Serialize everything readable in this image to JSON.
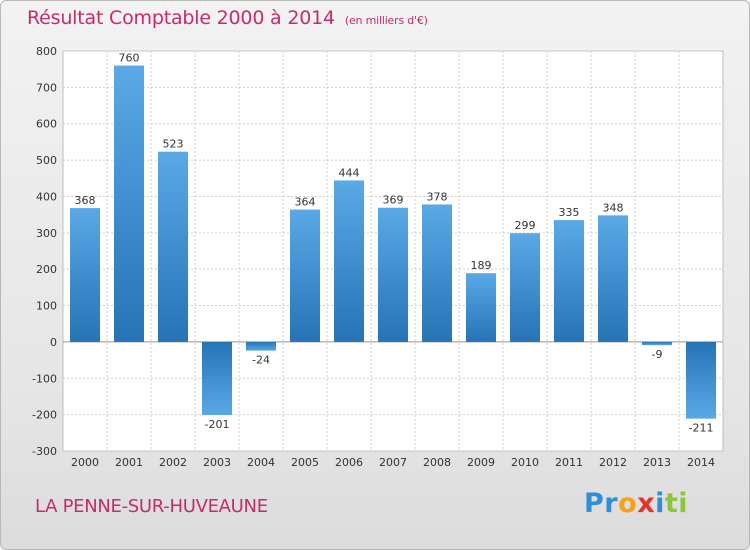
{
  "header": {
    "title": "Résultat Comptable 2000 à 2014",
    "unit": "(en milliers d'€)"
  },
  "footer": {
    "commune": "LA PENNE-SUR-HUVEAUNE",
    "brand_letters": [
      {
        "char": "P",
        "color": "#2e8fd8"
      },
      {
        "char": "r",
        "color": "#2e8fd8"
      },
      {
        "char": "o",
        "color": "#f7a21b"
      },
      {
        "char": "x",
        "color": "#e6332a"
      },
      {
        "char": "i",
        "color": "#2e8fd8"
      },
      {
        "char": "t",
        "color": "#8cc63f"
      },
      {
        "char": "i",
        "color": "#8cc63f"
      }
    ]
  },
  "colors": {
    "bar_light": "#5aa9e6",
    "bar_dark": "#2673b6",
    "title": "#c62b6e",
    "grid": "#cfcfcf"
  },
  "chart_data": {
    "type": "bar",
    "title": "Résultat Comptable 2000 à 2014",
    "xlabel": "",
    "ylabel": "(en milliers d'€)",
    "categories": [
      "2000",
      "2001",
      "2002",
      "2003",
      "2004",
      "2005",
      "2006",
      "2007",
      "2008",
      "2009",
      "2010",
      "2011",
      "2012",
      "2013",
      "2014"
    ],
    "values": [
      368,
      760,
      523,
      -201,
      -24,
      364,
      444,
      369,
      378,
      189,
      299,
      335,
      348,
      -9,
      -211
    ],
    "ylim": [
      -300,
      800
    ],
    "yticks": [
      -300,
      -200,
      -100,
      0,
      100,
      200,
      300,
      400,
      500,
      600,
      700,
      800
    ],
    "grid": true,
    "legend": "none"
  }
}
